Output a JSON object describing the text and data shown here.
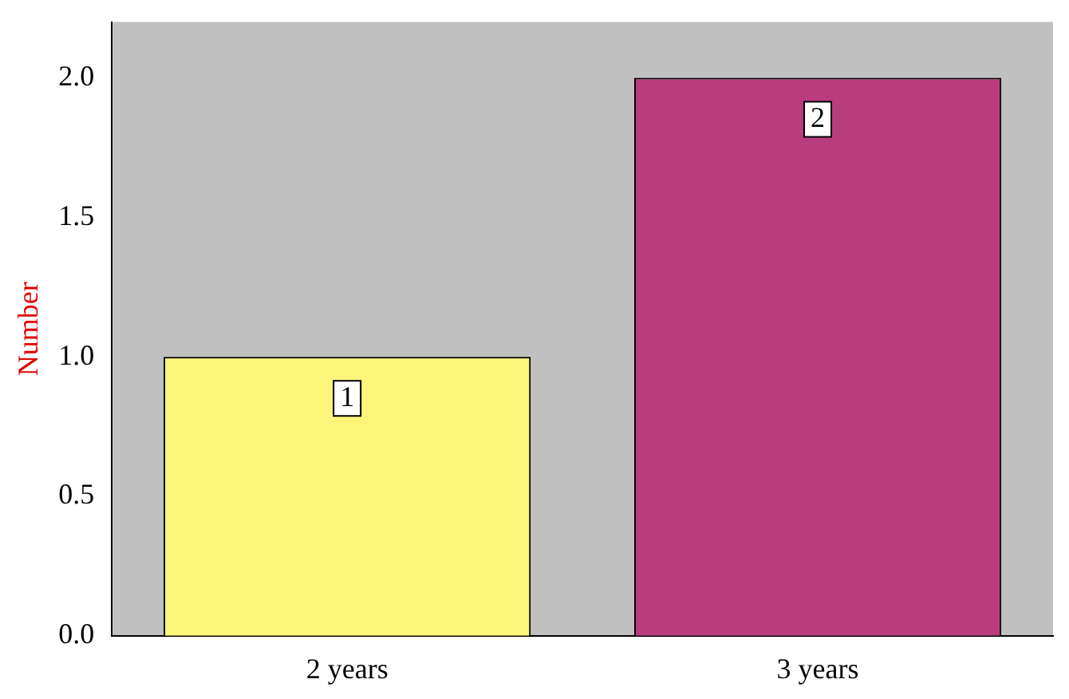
{
  "chart_data": {
    "type": "bar",
    "ylabel": "Number",
    "categories": [
      "2 years",
      "3 years"
    ],
    "values": [
      1,
      2
    ],
    "colors": [
      "#fdf57a",
      "#b93d7e"
    ],
    "ylim": [
      0,
      2.2
    ],
    "yticks": [
      {
        "value": 0,
        "label": "0.0"
      },
      {
        "value": 0.5,
        "label": "0.5"
      },
      {
        "value": 1,
        "label": "1.0"
      },
      {
        "value": 1.5,
        "label": "1.5"
      },
      {
        "value": 2,
        "label": "2.0"
      }
    ],
    "data_labels": true
  }
}
